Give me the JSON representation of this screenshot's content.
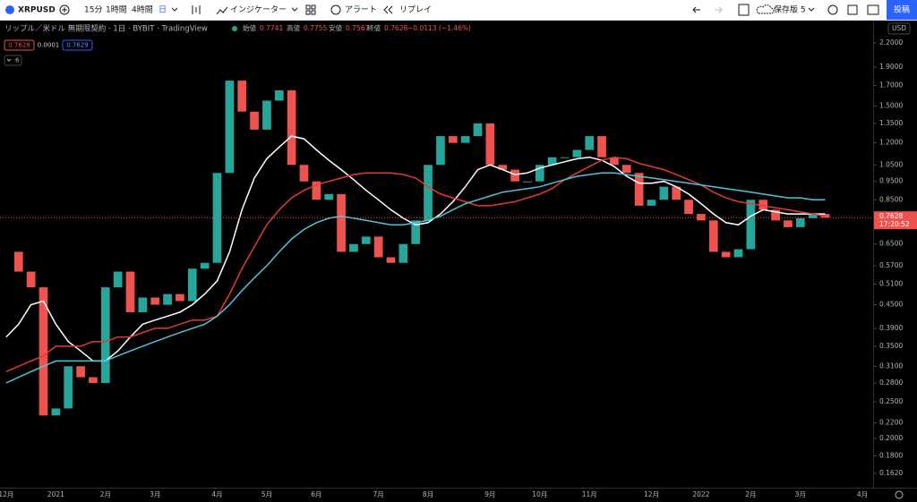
{
  "toolbar": {
    "symbol": "XRPUSD",
    "intervals": [
      "15分",
      "1時間",
      "4時間",
      "日"
    ],
    "indicators": "インジケーター",
    "alert": "アラート",
    "replay": "リプレイ",
    "save": "保存版 5",
    "publish": "投稿"
  },
  "legend": {
    "title": "リップル／米ドル 無期限契約 · 1日 · BYBIT · TradingView",
    "open_label": "始値",
    "open": "0.7741",
    "high_label": "高値",
    "high": "0.7755",
    "low_label": "安値",
    "low": "0.7567",
    "close_label": "終値",
    "close": "0.7628",
    "change": "−0.0113 (−1.46%)",
    "bid": "0.7628",
    "spread": "0.0001",
    "ask": "0.7629",
    "indicator_count": "6"
  },
  "price_axis": {
    "currency": "USD",
    "last_price": "0.7628",
    "countdown": "17:20:52"
  },
  "chart_data": {
    "type": "candlestick",
    "log_scale": true,
    "grid": false,
    "ylim": [
      0.1485,
      2.424
    ],
    "yticks": [
      {
        "value": 2.2,
        "label": "2.2000"
      },
      {
        "value": 1.9,
        "label": "1.9000"
      },
      {
        "value": 1.7,
        "label": "1.7000"
      },
      {
        "value": 1.5,
        "label": "1.5000"
      },
      {
        "value": 1.35,
        "label": "1.3500"
      },
      {
        "value": 1.2,
        "label": "1.2000"
      },
      {
        "value": 1.05,
        "label": "1.0500"
      },
      {
        "value": 0.95,
        "label": "0.9500"
      },
      {
        "value": 0.85,
        "label": "0.8500"
      },
      {
        "value": 0.65,
        "label": "0.6500"
      },
      {
        "value": 0.57,
        "label": "0.5700"
      },
      {
        "value": 0.51,
        "label": "0.5100"
      },
      {
        "value": 0.45,
        "label": "0.4500"
      },
      {
        "value": 0.39,
        "label": "0.3900"
      },
      {
        "value": 0.35,
        "label": "0.3500"
      },
      {
        "value": 0.31,
        "label": "0.3100"
      },
      {
        "value": 0.28,
        "label": "0.2800"
      },
      {
        "value": 0.25,
        "label": "0.2500"
      },
      {
        "value": 0.22,
        "label": "0.2200"
      },
      {
        "value": 0.2,
        "label": "0.2000"
      },
      {
        "value": 0.18,
        "label": "0.1800"
      },
      {
        "value": 0.162,
        "label": "0.1620"
      }
    ],
    "categories": [
      "12月",
      null,
      null,
      null,
      "2021",
      null,
      null,
      null,
      "2月",
      null,
      null,
      null,
      "3月",
      null,
      null,
      null,
      null,
      "4月",
      null,
      null,
      null,
      "5月",
      null,
      null,
      null,
      "6月",
      null,
      null,
      null,
      null,
      "7月",
      null,
      null,
      null,
      "8月",
      null,
      null,
      null,
      null,
      "9月",
      null,
      null,
      null,
      "10月",
      null,
      null,
      null,
      "11月",
      null,
      null,
      null,
      null,
      "12月",
      null,
      null,
      null,
      "2022",
      null,
      null,
      null,
      "2月",
      null,
      null,
      null,
      "3月",
      null,
      null,
      null,
      null,
      "4月"
    ],
    "up_color": "#26a69a",
    "down_color": "#ef5350",
    "values": [
      0.62,
      0.55,
      0.5,
      0.23,
      0.24,
      0.31,
      0.29,
      0.28,
      0.5,
      0.55,
      0.43,
      0.47,
      0.45,
      0.48,
      0.46,
      0.56,
      0.58,
      1.0,
      1.75,
      1.45,
      1.3,
      1.55,
      1.65,
      1.05,
      0.95,
      0.85,
      0.88,
      0.62,
      0.65,
      0.68,
      0.6,
      0.58,
      0.65,
      0.75,
      1.05,
      1.25,
      1.2,
      1.25,
      1.35,
      1.05,
      1.02,
      0.95,
      0.95,
      1.05,
      1.1,
      1.1,
      1.15,
      1.25,
      1.1,
      1.05,
      1.0,
      0.82,
      0.85,
      0.92,
      0.85,
      0.78,
      0.75,
      0.62,
      0.6,
      0.63,
      0.85,
      0.8,
      0.75,
      0.72,
      0.76,
      0.78,
      0.7628,
      null,
      null,
      null
    ],
    "lines": [
      {
        "color": "#ffffff",
        "values": [
          0.37,
          0.4,
          0.45,
          0.46,
          0.4,
          0.36,
          0.34,
          0.32,
          0.32,
          0.34,
          0.37,
          0.4,
          0.41,
          0.42,
          0.43,
          0.45,
          0.48,
          0.52,
          0.62,
          0.8,
          0.97,
          1.09,
          1.17,
          1.25,
          1.23,
          1.15,
          1.08,
          1.02,
          0.96,
          0.9,
          0.85,
          0.8,
          0.76,
          0.73,
          0.74,
          0.78,
          0.84,
          0.92,
          1.02,
          1.05,
          1.02,
          0.99,
          1.0,
          1.03,
          1.05,
          1.07,
          1.09,
          1.1,
          1.08,
          1.04,
          0.98,
          0.94,
          0.94,
          0.95,
          0.92,
          0.88,
          0.83,
          0.78,
          0.74,
          0.73,
          0.77,
          0.8,
          0.79,
          0.78,
          0.78,
          0.78,
          0.78,
          null,
          null,
          null
        ]
      },
      {
        "color": "#e53935",
        "values": [
          0.3,
          0.31,
          0.32,
          0.33,
          0.35,
          0.35,
          0.35,
          0.36,
          0.36,
          0.37,
          0.37,
          0.38,
          0.39,
          0.39,
          0.4,
          0.41,
          0.41,
          0.42,
          0.48,
          0.56,
          0.64,
          0.73,
          0.8,
          0.86,
          0.9,
          0.93,
          0.95,
          0.97,
          0.99,
          1.0,
          1.0,
          1.0,
          0.99,
          0.97,
          0.92,
          0.88,
          0.86,
          0.84,
          0.82,
          0.82,
          0.83,
          0.84,
          0.86,
          0.88,
          0.91,
          0.96,
          1.0,
          1.04,
          1.08,
          1.1,
          1.09,
          1.06,
          1.04,
          1.02,
          0.99,
          0.96,
          0.93,
          0.89,
          0.86,
          0.84,
          0.83,
          0.82,
          0.81,
          0.8,
          0.79,
          0.78,
          0.77,
          null,
          null,
          null
        ]
      },
      {
        "color": "#4fc3d9",
        "values": [
          0.28,
          0.29,
          0.3,
          0.31,
          0.32,
          0.32,
          0.32,
          0.32,
          0.32,
          0.33,
          0.34,
          0.35,
          0.36,
          0.37,
          0.38,
          0.39,
          0.4,
          0.42,
          0.45,
          0.49,
          0.53,
          0.57,
          0.62,
          0.67,
          0.71,
          0.74,
          0.76,
          0.77,
          0.76,
          0.75,
          0.74,
          0.73,
          0.73,
          0.74,
          0.75,
          0.77,
          0.8,
          0.83,
          0.85,
          0.87,
          0.89,
          0.9,
          0.91,
          0.92,
          0.94,
          0.96,
          0.98,
          0.99,
          1.0,
          1.0,
          0.99,
          0.98,
          0.97,
          0.96,
          0.95,
          0.94,
          0.93,
          0.92,
          0.91,
          0.9,
          0.89,
          0.88,
          0.87,
          0.86,
          0.86,
          0.85,
          0.85,
          null,
          null,
          null
        ]
      }
    ]
  }
}
